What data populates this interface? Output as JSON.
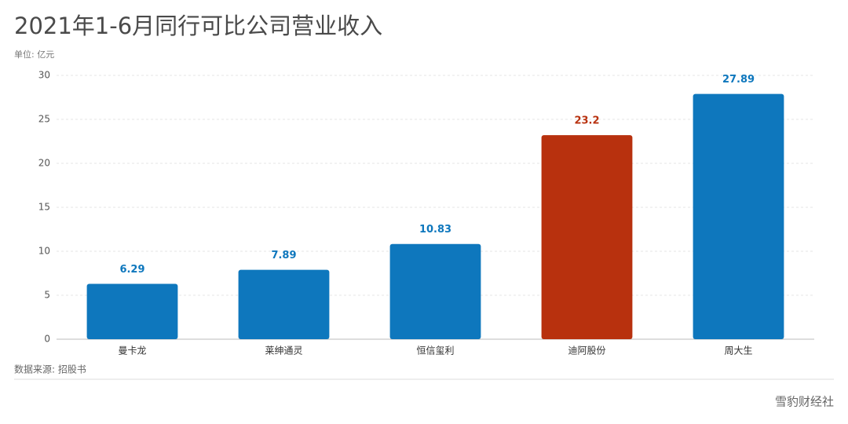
{
  "chart_data": {
    "type": "bar",
    "title": "2021年1-6月同行可比公司营业收入",
    "unit": "单位: 亿元",
    "source": "数据来源: 招股书",
    "watermark": "雪豹财经社",
    "categories": [
      "曼卡龙",
      "莱绅通灵",
      "恒信玺利",
      "迪阿股份",
      "周大生"
    ],
    "values": [
      6.29,
      7.89,
      10.83,
      23.2,
      27.89
    ],
    "colors": [
      "#0e77bd",
      "#0e77bd",
      "#0e77bd",
      "#b8310e",
      "#0e77bd"
    ],
    "ylim": [
      0,
      30
    ],
    "yticks": [
      0,
      5,
      10,
      15,
      20,
      25,
      30
    ],
    "grid": true
  }
}
